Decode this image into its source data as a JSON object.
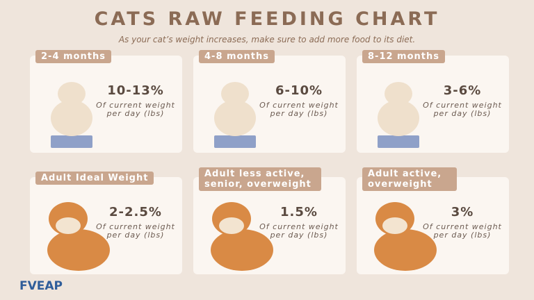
{
  "header": {
    "title": "CATS RAW FEEDING CHART",
    "subtitle": "As your cat’s weight increases, make sure to add more food to its diet."
  },
  "cards": [
    {
      "label": "2-4 months",
      "percent": "10-13%",
      "description": "Of current weight per day (lbs)"
    },
    {
      "label": "4-8 months",
      "percent": "6-10%",
      "description": "Of current weight per day (lbs)"
    },
    {
      "label": "8-12 months",
      "percent": "3-6%",
      "description": "Of current weight per day (lbs)"
    },
    {
      "label": "Adult Ideal Weight",
      "percent": "2-2.5%",
      "description": "Of current weight per day (lbs)"
    },
    {
      "label": "Adult less active, senior, overweight",
      "percent": "1.5%",
      "description": "Of current weight per day (lbs)"
    },
    {
      "label": "Adult active, overweight",
      "percent": "3%",
      "description": "Of current weight per day (lbs)"
    }
  ],
  "logo": "FVEAP"
}
